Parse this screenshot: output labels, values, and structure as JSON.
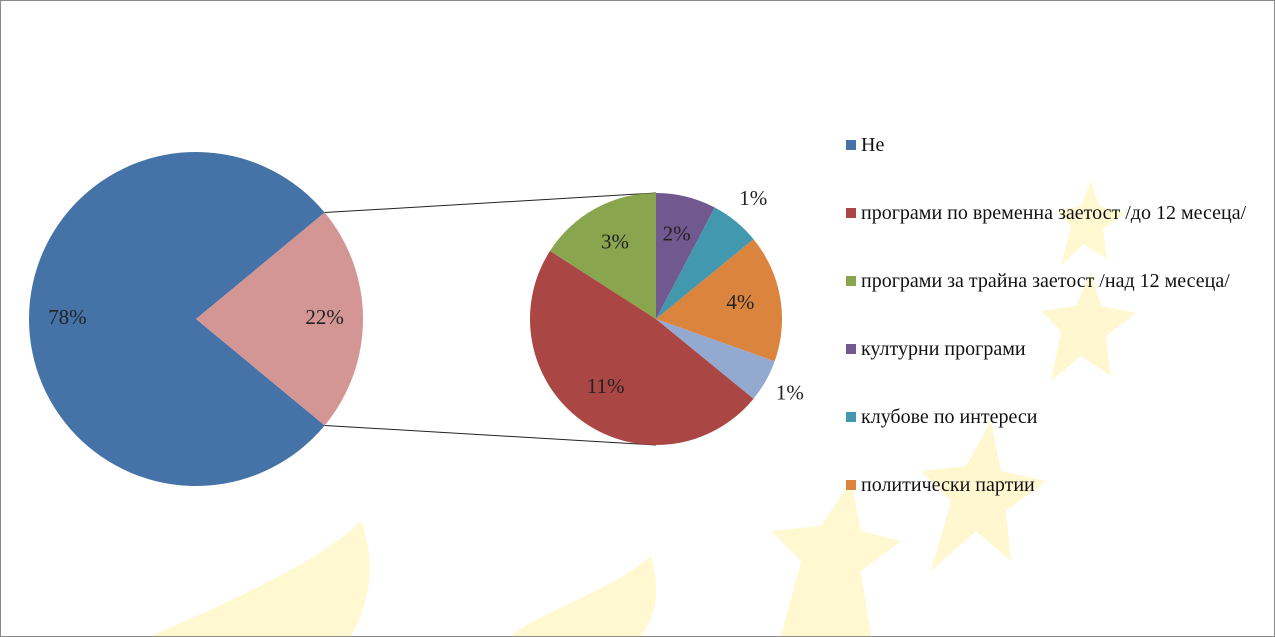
{
  "chart_data": {
    "type": "pie-of-pie",
    "categories": [
      "Не",
      "програми по временна заетост /до 12 месеца/",
      "програми за трайна заетост /над 12 месеца/",
      "културни програми",
      "клубове по интереси",
      "политически партии",
      null
    ],
    "values": [
      78,
      10.6,
      3.5,
      1.7,
      1.4,
      3.6,
      1.2
    ],
    "value_labels": [
      "78%",
      "11%",
      "3%",
      "2%",
      "1%",
      "4%",
      "1%"
    ],
    "colors": [
      "#4572a7",
      "#aa4643",
      "#89a54e",
      "#71588f",
      "#4198af",
      "#db843d",
      "#93a9cf"
    ],
    "other": {
      "value": 22,
      "label": "22%",
      "color": "#d49694"
    }
  }
}
